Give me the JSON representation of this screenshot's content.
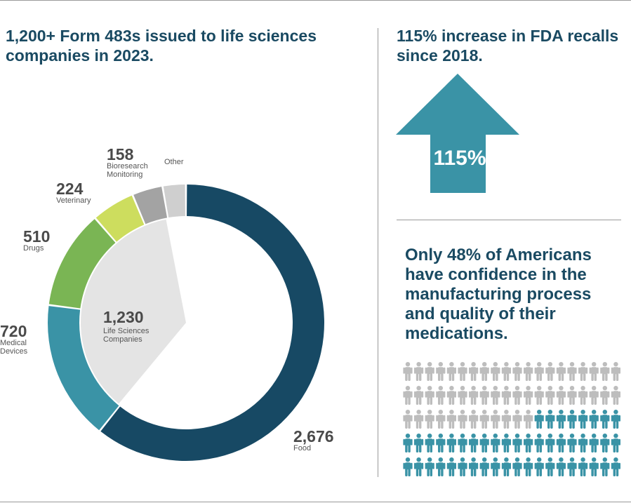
{
  "colors": {
    "food": "#174964",
    "medical_devices": "#3a93a6",
    "drugs": "#7ab554",
    "veterinary": "#cddd5e",
    "bioresearch": "#a3a3a3",
    "other": "#cfcfcf",
    "center": "#e4e4e4",
    "heading": "#1a4a62",
    "arrow": "#3a93a6",
    "person_confident": "#3a93a6",
    "person_not_confident": "#bdbdbd"
  },
  "left_panel": {
    "headline": "1,200+ Form 483s issued to life sciences companies in 2023."
  },
  "right_top": {
    "headline": "115% increase in FDA recalls since 2018.",
    "arrow_value": "115%",
    "arrow_icon": "up-arrow-icon"
  },
  "right_bottom": {
    "headline": "Only 48% of Americans have confidence in the manufacturing process and quality of their medications.",
    "person_icon": "person-icon"
  },
  "chart_data": [
    {
      "type": "pie",
      "variant": "donut",
      "segments": [
        {
          "key": "food",
          "value": 2676,
          "value_label": "2,676",
          "label_lines": [
            "Food"
          ]
        },
        {
          "key": "medical_devices",
          "value": 720,
          "value_label": "720",
          "label_lines": [
            "Medical",
            "Devices"
          ]
        },
        {
          "key": "drugs",
          "value": 510,
          "value_label": "510",
          "label_lines": [
            "Drugs"
          ]
        },
        {
          "key": "veterinary",
          "value": 224,
          "value_label": "224",
          "label_lines": [
            "Veterinary"
          ]
        },
        {
          "key": "bioresearch",
          "value": 158,
          "value_label": "158",
          "label_lines": [
            "Bioresearch",
            "Monitoring"
          ]
        },
        {
          "key": "other",
          "value": 120,
          "value_label": "",
          "label_lines": [
            "Other"
          ]
        }
      ],
      "center": {
        "value_label": "1,230",
        "label_lines": [
          "Life Sciences",
          "Companies"
        ]
      }
    },
    {
      "type": "pictogram",
      "total": 100,
      "highlighted": 48,
      "rows": 5,
      "columns": 20,
      "highlighted_share": "48%"
    }
  ]
}
